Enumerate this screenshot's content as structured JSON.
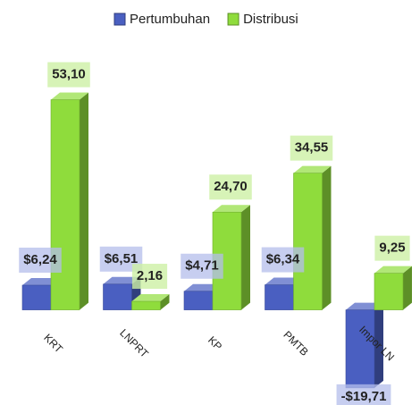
{
  "chart_data": {
    "type": "bar3d",
    "categories": [
      "KRT",
      "LNPRT",
      "KP",
      "PMTB",
      "Impor LN"
    ],
    "ylim": [
      -22,
      60
    ],
    "series": [
      {
        "name": "Pertumbuhan",
        "color": "#4a5fc1",
        "values": [
          6.24,
          6.51,
          4.71,
          6.34,
          -19.71
        ],
        "value_labels": [
          "$6,24",
          "$6,51",
          "$4,71",
          "$6,34",
          "-$19,71"
        ]
      },
      {
        "name": "Distribusi",
        "color": "#8fdc3c",
        "values": [
          53.1,
          2.16,
          24.7,
          34.55,
          9.25
        ],
        "value_labels": [
          "53,10",
          "2,16",
          "24,70",
          "34,55",
          "9,25"
        ]
      }
    ],
    "legend": "top"
  }
}
